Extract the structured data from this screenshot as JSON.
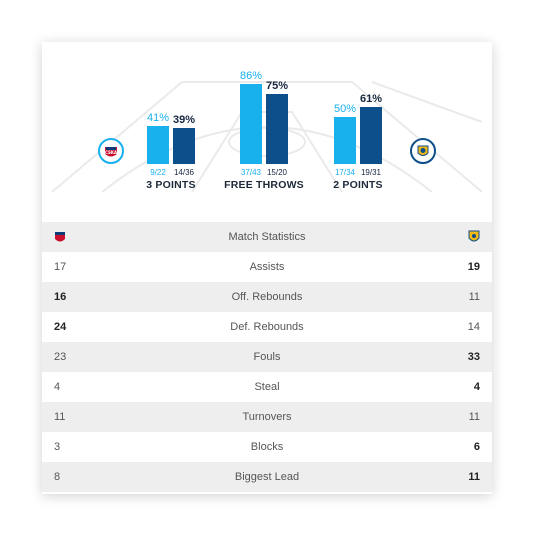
{
  "teams": {
    "home": {
      "logo_text": "CSKA",
      "color": "#19b0ee"
    },
    "away": {
      "color": "#0d4f8b"
    }
  },
  "categories": [
    {
      "label": "3 POINTS",
      "home_pct": "41%",
      "away_pct": "39%",
      "home_made": "9/22",
      "away_made": "14/36",
      "home_value": 41,
      "away_value": 39
    },
    {
      "label": "FREE THROWS",
      "home_pct": "86%",
      "away_pct": "75%",
      "home_made": "37/43",
      "away_made": "15/20",
      "home_value": 86,
      "away_value": 75
    },
    {
      "label": "2 POINTS",
      "home_pct": "50%",
      "away_pct": "61%",
      "home_made": "17/34",
      "away_made": "19/31",
      "home_value": 50,
      "away_value": 61
    }
  ],
  "table": {
    "header": "Match Statistics",
    "rows": [
      {
        "label": "Assists",
        "home": "17",
        "away": "19",
        "bold": "away"
      },
      {
        "label": "Off. Rebounds",
        "home": "16",
        "away": "11",
        "bold": "home"
      },
      {
        "label": "Def. Rebounds",
        "home": "24",
        "away": "14",
        "bold": "home"
      },
      {
        "label": "Fouls",
        "home": "23",
        "away": "33",
        "bold": "away"
      },
      {
        "label": "Steal",
        "home": "4",
        "away": "4",
        "bold": "away"
      },
      {
        "label": "Turnovers",
        "home": "11",
        "away": "11",
        "bold": "none"
      },
      {
        "label": "Blocks",
        "home": "3",
        "away": "6",
        "bold": "away"
      },
      {
        "label": "Biggest Lead",
        "home": "8",
        "away": "11",
        "bold": "away"
      }
    ]
  }
}
